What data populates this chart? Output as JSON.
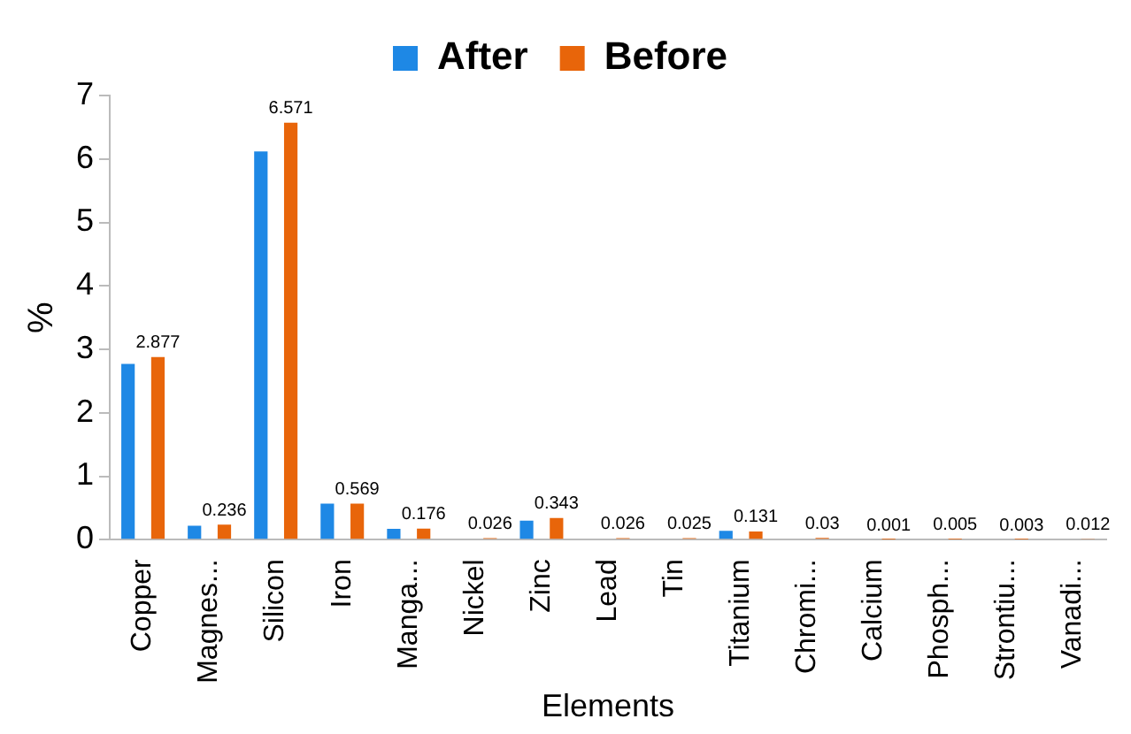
{
  "chart_data": {
    "type": "bar",
    "xlabel": "Elements",
    "ylabel": "%",
    "categories": [
      "Copper",
      "Magnes...",
      "Silicon",
      "Iron",
      "Manga...",
      "Nickel",
      "Zinc",
      "Lead",
      "Tin",
      "Titanium",
      "Chromi...",
      "Calcium",
      "Phosph...",
      "Strontiu...",
      "Vanadi..."
    ],
    "series": [
      {
        "name": "After",
        "color": "#1e88e5",
        "values": [
          2.77,
          0.22,
          6.12,
          0.57,
          0.17,
          null,
          0.3,
          null,
          null,
          0.14,
          null,
          null,
          null,
          null,
          null
        ]
      },
      {
        "name": "Before",
        "color": "#e8650a",
        "values": [
          2.877,
          0.236,
          6.571,
          0.569,
          0.176,
          0.026,
          0.343,
          0.026,
          0.025,
          0.131,
          0.03,
          0.001,
          0.005,
          0.003,
          0.012
        ],
        "value_labels": [
          "2.877",
          "0.236",
          "6.571",
          "0.569",
          "0.176",
          "0.026",
          "0.343",
          "0.026",
          "0.025",
          "0.131",
          "0.03",
          "0.001",
          "0.005",
          "0.003",
          "0.012"
        ]
      }
    ],
    "ylim": [
      0,
      7
    ],
    "yticks": [
      0,
      1,
      2,
      3,
      4,
      5,
      6,
      7
    ],
    "grid": false,
    "legend": "top"
  }
}
